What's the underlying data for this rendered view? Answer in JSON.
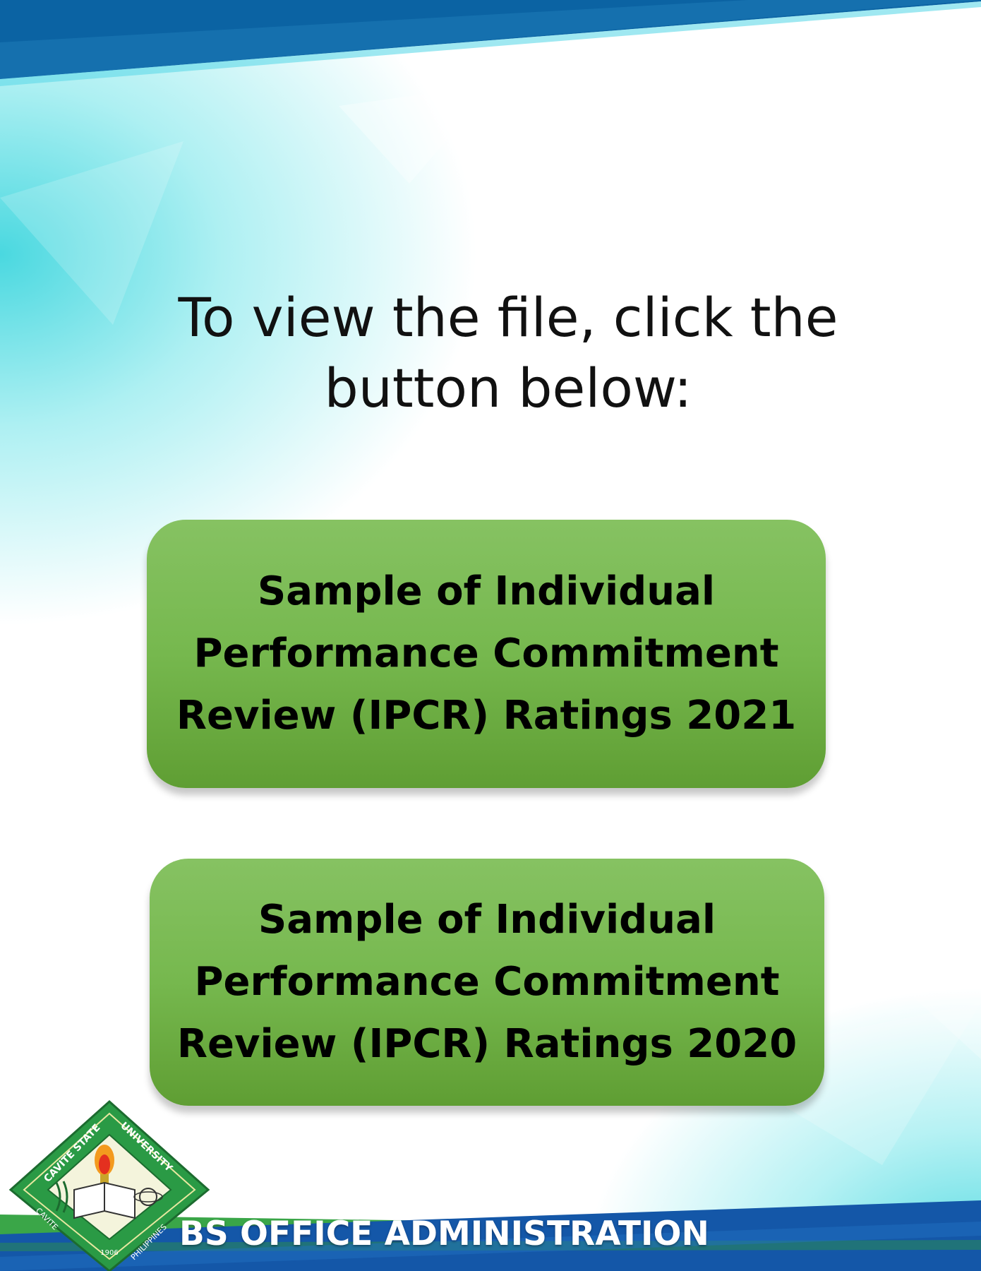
{
  "headline": {
    "line1": "To view the file, click the",
    "line2": "button below:"
  },
  "buttons": [
    {
      "line1": "Sample of Individual",
      "line2": "Performance Commitment",
      "line3": "Review (IPCR) Ratings 2021"
    },
    {
      "line1": "Sample of Individual",
      "line2": "Performance Commitment",
      "line3": "Review (IPCR) Ratings 2020"
    }
  ],
  "logo": {
    "ring_top": "CAVITE STATE",
    "ring_right": "UNIVERSITY",
    "ring_left": "CAVITE",
    "ring_bottom_right": "PHILIPPINES",
    "year": "1906",
    "icon": "cavite-state-university-seal-icon"
  },
  "footer": {
    "title": "BS OFFICE ADMINISTRATION"
  },
  "colors": {
    "top_band": "#0b6aa8",
    "teal": "#40d6de",
    "button_green": "#76b84e",
    "footer_blue": "#1457a8",
    "footer_green": "#3aa648"
  }
}
